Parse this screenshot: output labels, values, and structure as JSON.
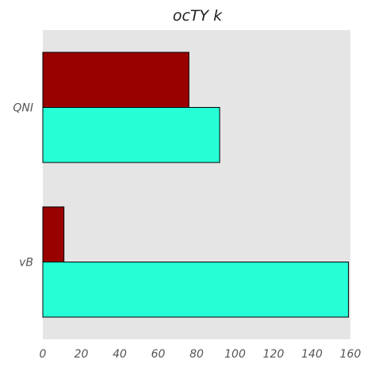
{
  "chart_data": {
    "type": "bar",
    "orientation": "horizontal",
    "title": "ocTY  k",
    "xlabel": "",
    "ylabel": "",
    "categories": [
      "QNI",
      "vB"
    ],
    "series": [
      {
        "values": [
          76,
          11
        ],
        "color": "#990000"
      },
      {
        "values": [
          92,
          159
        ],
        "color": "#26ffd6"
      }
    ],
    "xlim": [
      0,
      160
    ],
    "xticks": [
      "0",
      "20",
      "40",
      "60",
      "80",
      "100",
      "120",
      "140",
      "160"
    ],
    "grid": false,
    "plot_background": "#e5e5e5",
    "bar_edge_color": "#000000"
  }
}
